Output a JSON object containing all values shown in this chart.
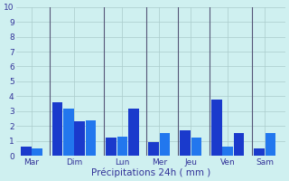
{
  "xlabel": "Précipitations 24h ( mm )",
  "background_color": "#cff0f0",
  "grid_color": "#aacccc",
  "ylim": [
    0,
    10
  ],
  "yticks": [
    0,
    1,
    2,
    3,
    4,
    5,
    6,
    7,
    8,
    9,
    10
  ],
  "day_labels": [
    "Mar",
    "Dim",
    "Lun",
    "Mer",
    "Jeu",
    "Ven",
    "Sam"
  ],
  "bars": [
    {
      "label": "Mar",
      "values": [
        0.6,
        0.5
      ]
    },
    {
      "label": "Dim",
      "values": [
        3.6,
        3.2,
        2.3,
        2.4
      ]
    },
    {
      "label": "Lun",
      "values": [
        1.2,
        1.3,
        3.2
      ]
    },
    {
      "label": "Mer",
      "values": [
        0.9,
        1.5
      ]
    },
    {
      "label": "Jeu",
      "values": [
        1.7,
        1.2
      ]
    },
    {
      "label": "Ven",
      "values": [
        3.8,
        0.6,
        1.5
      ]
    },
    {
      "label": "Sam",
      "values": [
        0.5,
        1.5
      ]
    }
  ],
  "bar_colors": [
    "#1a3acc",
    "#2277ee"
  ],
  "tick_fontsize": 6.5,
  "label_fontsize": 7.5,
  "separator_color": "#555577"
}
